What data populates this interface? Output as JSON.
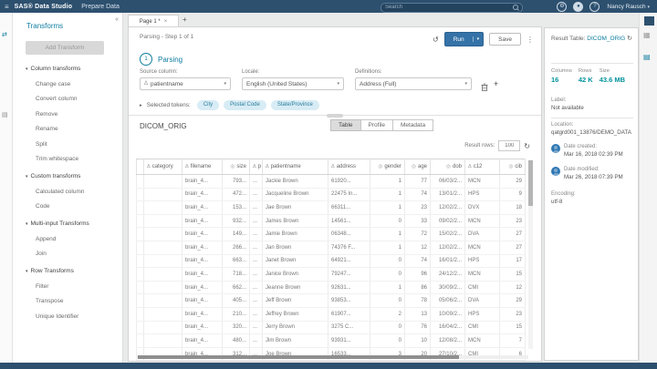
{
  "icons": {
    "hamburger": "≡",
    "collapse": "«",
    "close": "×",
    "add_tab": "+",
    "more": "⋮",
    "undo": "↺",
    "refresh": "↻",
    "caret_down": "▾",
    "tokens_caret": "▸",
    "section_caret": "▾",
    "char_col": "Δ",
    "num_col": "◎",
    "plus": "+",
    "rail_transforms": "⇄",
    "rail_list": "▤",
    "panel_profile": "▦",
    "panel_table": "▤",
    "settings": "⚙",
    "notification": "●",
    "help": "?",
    "user_caret": "▾"
  },
  "topbar": {
    "brand": "SAS® Data Studio",
    "app_title": "Prepare Data",
    "search_placeholder": "Search",
    "user_name": "Nancy Rausch"
  },
  "sidebar": {
    "title": "Transforms",
    "add_button": "Add Transform",
    "sections": [
      {
        "label": "Column transforms",
        "items": [
          "Change case",
          "Convert column",
          "Remove",
          "Rename",
          "Split",
          "Trim whitespace"
        ]
      },
      {
        "label": "Custom transforms",
        "items": [
          "Calculated column",
          "Code"
        ]
      },
      {
        "label": "Multi-input Transforms",
        "items": [
          "Append",
          "Join"
        ]
      },
      {
        "label": "Row Transforms",
        "items": [
          "Filter",
          "Transpose",
          "Unique Identifier"
        ]
      }
    ]
  },
  "tab": {
    "label": "Page 1 *"
  },
  "main": {
    "breadcrumb": "Parsing - Step 1 of 1",
    "run_label": "Run",
    "save_label": "Save",
    "step_number": "1",
    "step_label": "Parsing",
    "source_column_label": "Source column:",
    "source_column_value": "patientname",
    "locale_label": "Locale:",
    "locale_value": "English (United States)",
    "definitions_label": "Definitions:",
    "definitions_value": "Address (Full)",
    "tokens_label": "Selected tokens:",
    "tokens": [
      "City",
      "Postal Code",
      "State/Province"
    ]
  },
  "table": {
    "title": "DICOM_ORIG",
    "views": [
      "Table",
      "Profile",
      "Metadata"
    ],
    "active_view": "Table",
    "result_rows_label": "Result rows:",
    "result_rows": "100",
    "columns": [
      {
        "label": "category",
        "type": "char"
      },
      {
        "label": "filename",
        "type": "char"
      },
      {
        "label": "size",
        "type": "num"
      },
      {
        "label": "p",
        "type": "char"
      },
      {
        "label": "patientname",
        "type": "char"
      },
      {
        "label": "address",
        "type": "char"
      },
      {
        "label": "gender",
        "type": "num"
      },
      {
        "label": "age",
        "type": "num"
      },
      {
        "label": "dob",
        "type": "num"
      },
      {
        "label": "c12",
        "type": "char"
      },
      {
        "label": "cib",
        "type": "num"
      }
    ],
    "rows": [
      [
        "",
        "brain_4...",
        "793...",
        "...",
        "Jackie Brown",
        "61920...",
        "1",
        "77",
        "06/03/2...",
        "MCN",
        "29"
      ],
      [
        "",
        "brain_4...",
        "472...",
        "...",
        "Jacqueline Brown",
        "22475 In...",
        "1",
        "74",
        "13/01/2...",
        "HPS",
        "9"
      ],
      [
        "",
        "brain_4...",
        "153...",
        "...",
        "Jae Brown",
        "66311...",
        "1",
        "23",
        "12/02/2...",
        "DVX",
        "18"
      ],
      [
        "",
        "brain_4...",
        "932...",
        "...",
        "James Brown",
        "14561...",
        "0",
        "33",
        "09/02/2...",
        "MCN",
        "23"
      ],
      [
        "",
        "brain_4...",
        "149...",
        "...",
        "Jamie Brown",
        "06348...",
        "1",
        "72",
        "15/02/2...",
        "DVA",
        "27"
      ],
      [
        "",
        "brain_4...",
        "266...",
        "...",
        "Jan Brown",
        "74376 F...",
        "1",
        "12",
        "12/02/2...",
        "MCN",
        "27"
      ],
      [
        "",
        "brain_4...",
        "663...",
        "...",
        "Janet Brown",
        "64921...",
        "0",
        "74",
        "16/01/2...",
        "HPS",
        "17"
      ],
      [
        "",
        "brain_4...",
        "718...",
        "...",
        "Janice Brown",
        "79247...",
        "0",
        "96",
        "24/12/2...",
        "MCN",
        "15"
      ],
      [
        "",
        "brain_4...",
        "662...",
        "...",
        "Jeanne Brown",
        "92631...",
        "1",
        "86",
        "30/09/2...",
        "CMI",
        "12"
      ],
      [
        "",
        "brain_4...",
        "405...",
        "...",
        "Jeff Brown",
        "93853...",
        "0",
        "78",
        "05/06/2...",
        "DVA",
        "29"
      ],
      [
        "",
        "brain_4...",
        "210...",
        "...",
        "Jeffrey Brown",
        "61907...",
        "2",
        "13",
        "10/09/2...",
        "HPS",
        "23"
      ],
      [
        "",
        "brain_4...",
        "320...",
        "...",
        "Jerry Brown",
        "3275 C...",
        "0",
        "76",
        "16/04/2...",
        "CMI",
        "15"
      ],
      [
        "",
        "brain_4...",
        "480...",
        "...",
        "Jim Brown",
        "93931...",
        "0",
        "10",
        "12/08/2...",
        "MCN",
        "7"
      ],
      [
        "",
        "brain_4...",
        "312...",
        "...",
        "Joe Brown",
        "16533...",
        "3",
        "20",
        "27/10/2...",
        "CMI",
        "6"
      ]
    ]
  },
  "right_panel": {
    "title_label": "Result Table:",
    "table_name": "DICOM_ORIG",
    "stats": [
      {
        "label": "Columns",
        "value": "16"
      },
      {
        "label": "Rows",
        "value": "42 K"
      },
      {
        "label": "Size",
        "value": "43.6 MB"
      }
    ],
    "label_label": "Label:",
    "label_value": "Not available",
    "location_label": "Location:",
    "location_value": "qatgrd001_13876/DEMO_DATA",
    "created_label": "Date created:",
    "created_value": "Mar 16, 2018 02:39 PM",
    "modified_label": "Date modified:",
    "modified_value": "Mar 26, 2018 07:39 PM",
    "encoding_label": "Encoding:",
    "encoding_value": "utf-8"
  }
}
